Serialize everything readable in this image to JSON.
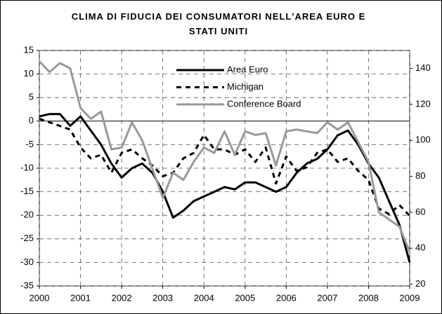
{
  "chart_data": {
    "type": "line",
    "title": "CLIMA DI FIDUCIA DEI CONSUMATORI NELL'AREA EURO E STATI UNITI",
    "x": [
      2000,
      2000.25,
      2000.5,
      2000.75,
      2001,
      2001.25,
      2001.5,
      2001.75,
      2002,
      2002.25,
      2002.5,
      2002.75,
      2003,
      2003.25,
      2003.5,
      2003.75,
      2004,
      2004.25,
      2004.5,
      2004.75,
      2005,
      2005.25,
      2005.5,
      2005.75,
      2006,
      2006.25,
      2006.5,
      2006.75,
      2007,
      2007.25,
      2007.5,
      2007.75,
      2008,
      2008.25,
      2008.5,
      2008.75,
      2009
    ],
    "series": [
      {
        "name": "Area Euro",
        "color": "#000000",
        "linestyle": "solid",
        "axis": "y",
        "values": [
          1,
          1.5,
          1.5,
          -1,
          1,
          -2,
          -5,
          -9,
          -12,
          -10,
          -9,
          -11,
          -15,
          -20.5,
          -19,
          -17,
          -16,
          -15,
          -14,
          -14.5,
          -13,
          -13,
          -14,
          -15,
          -14,
          -11,
          -9,
          -8,
          -6,
          -3,
          -2,
          -5,
          -9,
          -12,
          -17,
          -22,
          -30
        ]
      },
      {
        "name": "Michigan",
        "color": "#000000",
        "linestyle": "dashed",
        "axis": "y2",
        "values": [
          112,
          110,
          108,
          106,
          96,
          90,
          92,
          82,
          93,
          95,
          90,
          86,
          80,
          82,
          90,
          93,
          103,
          95,
          95,
          92,
          95,
          88,
          96,
          76,
          91,
          83,
          85,
          93,
          95,
          88,
          90,
          83,
          78,
          62,
          59,
          64,
          58
        ]
      },
      {
        "name": "Conference Board",
        "color": "#999999",
        "linestyle": "solid",
        "axis": "y2",
        "values": [
          144,
          138,
          143,
          140,
          118,
          112,
          116,
          95,
          96,
          110,
          100,
          84,
          68,
          82,
          78,
          88,
          96,
          93,
          105,
          92,
          105,
          103,
          104,
          86,
          105,
          106,
          105,
          104,
          110,
          106,
          110,
          99,
          88,
          60,
          56,
          52,
          38
        ]
      }
    ],
    "xlim": [
      2000,
      2009
    ],
    "xticks": [
      2000,
      2001,
      2002,
      2003,
      2004,
      2005,
      2006,
      2007,
      2008,
      2009
    ],
    "ylim": [
      -35,
      15
    ],
    "yticks": [
      -35,
      -30,
      -25,
      -20,
      -15,
      -10,
      -5,
      0,
      5,
      10,
      15
    ],
    "y2lim": [
      19,
      150
    ],
    "y2ticks": [
      20,
      40,
      60,
      80,
      100,
      120,
      140
    ],
    "grid": true,
    "legend": "upper center"
  }
}
